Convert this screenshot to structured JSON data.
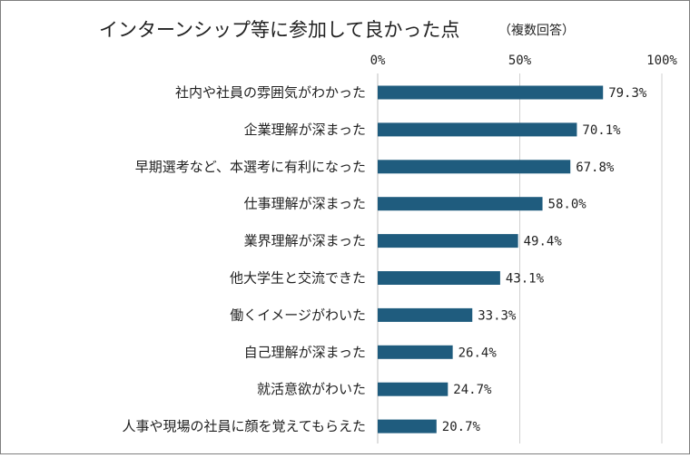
{
  "chart_data": {
    "type": "bar",
    "orientation": "horizontal",
    "title": "インターンシップ等に参加して良かった点",
    "subtitle": "（複数回答）",
    "categories": [
      "社内や社員の雰囲気がわかった",
      "企業理解が深まった",
      "早期選考など、本選考に有利になった",
      "仕事理解が深まった",
      "業界理解が深まった",
      "他大学生と交流できた",
      "働くイメージがわいた",
      "自己理解が深まった",
      "就活意欲がわいた",
      "人事や現場の社員に顔を覚えてもらえた"
    ],
    "values": [
      79.3,
      70.1,
      67.8,
      58.0,
      49.4,
      43.1,
      33.3,
      26.4,
      24.7,
      20.7
    ],
    "value_labels": [
      "79.3%",
      "70.1%",
      "67.8%",
      "58.0%",
      "49.4%",
      "43.1%",
      "33.3%",
      "26.4%",
      "24.7%",
      "20.7%"
    ],
    "xlim": [
      0,
      100
    ],
    "ticks": [
      0,
      50,
      100
    ],
    "tick_labels": [
      "0%",
      "50%",
      "100%"
    ],
    "xlabel": "",
    "ylabel": "",
    "grid": true,
    "legend": "none",
    "colors": {
      "bar": "#1f5c7e",
      "grid": "#d0d0d0",
      "axis": "#bfbfbf"
    }
  }
}
